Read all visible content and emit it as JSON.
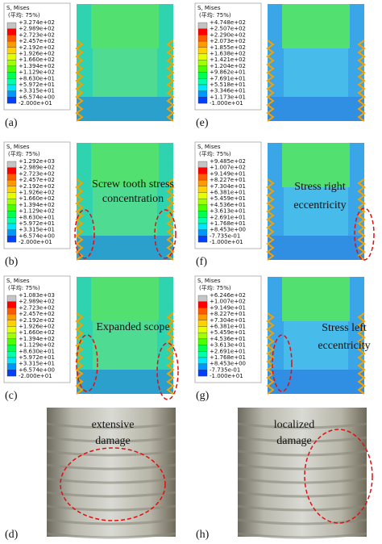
{
  "panels": [
    {
      "label": "(a)",
      "legend": {
        "title": "S, Mises",
        "subtitle": "(平均: 75%)",
        "values": [
          "+3.274e+02",
          "+2.989e+02",
          "+2.723e+02",
          "+2.457e+02",
          "+2.192e+02",
          "+1.926e+02",
          "+1.660e+02",
          "+1.394e+02",
          "+1.129e+02",
          "+8.630e+01",
          "+5.972e+01",
          "+3.315e+01",
          "+6.574e+00",
          "-2.000e+01"
        ]
      },
      "annotation": []
    },
    {
      "label": "(b)",
      "legend": {
        "title": "S, Mises",
        "subtitle": "(平均: 75%)",
        "values": [
          "+1.292e+03",
          "+2.989e+02",
          "+2.723e+02",
          "+2.457e+02",
          "+2.192e+02",
          "+1.926e+02",
          "+1.660e+02",
          "+1.394e+02",
          "+1.129e+02",
          "+8.630e+01",
          "+5.972e+01",
          "+3.315e+01",
          "+6.574e+00",
          "-2.000e+01"
        ]
      },
      "annotation": [
        "Screw tooth stress",
        "concentration"
      ]
    },
    {
      "label": "(c)",
      "legend": {
        "title": "S, Mises",
        "subtitle": "(平均: 75%)",
        "values": [
          "+1.083e+03",
          "+2.989e+02",
          "+2.723e+02",
          "+2.457e+02",
          "+2.192e+02",
          "+1.926e+02",
          "+1.660e+02",
          "+1.394e+02",
          "+1.129e+02",
          "+8.630e+01",
          "+5.972e+01",
          "+3.315e+01",
          "+6.574e+00",
          "-2.000e+01"
        ]
      },
      "annotation": [
        "Expanded scope"
      ]
    },
    {
      "label": "(e)",
      "legend": {
        "title": "S, Mises",
        "subtitle": "(平均: 75%)",
        "values": [
          "+4.748e+02",
          "+2.507e+02",
          "+2.290e+02",
          "+2.073e+02",
          "+1.855e+02",
          "+1.638e+02",
          "+1.421e+02",
          "+1.204e+02",
          "+9.862e+01",
          "+7.691e+01",
          "+5.518e+01",
          "+3.346e+01",
          "+1.173e+01",
          "-1.000e+01"
        ]
      },
      "annotation": []
    },
    {
      "label": "(f)",
      "legend": {
        "title": "S, Mises",
        "subtitle": "(平均: 75%)",
        "values": [
          "+9.485e+02",
          "+1.007e+02",
          "+9.149e+01",
          "+8.227e+01",
          "+7.304e+01",
          "+6.381e+01",
          "+5.459e+01",
          "+4.536e+01",
          "+3.613e+01",
          "+2.691e+01",
          "+1.768e+01",
          "+8.453e+00",
          "-7.735e-01",
          "-1.000e+01"
        ]
      },
      "annotation": [
        "Stress right",
        "eccentricity"
      ]
    },
    {
      "label": "(g)",
      "legend": {
        "title": "S, Mises",
        "subtitle": "(平均: 75%)",
        "values": [
          "+6.246e+02",
          "+1.007e+02",
          "+9.149e+01",
          "+8.227e+01",
          "+7.304e+01",
          "+6.381e+01",
          "+5.459e+01",
          "+4.536e+01",
          "+3.613e+01",
          "+2.691e+01",
          "+1.768e+01",
          "+8.453e+00",
          "-7.735e-01",
          "-1.000e+01"
        ]
      },
      "annotation": [
        "Stress left",
        "eccentricity"
      ]
    }
  ],
  "photos": [
    {
      "label": "(d)",
      "annotation": [
        "extensive",
        "damage"
      ]
    },
    {
      "label": "(h)",
      "annotation": [
        "localized",
        "damage"
      ]
    }
  ]
}
